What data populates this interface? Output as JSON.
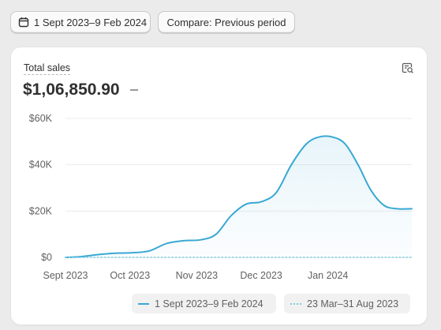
{
  "toolbar": {
    "date_range_label": "1 Sept 2023–9 Feb 2024",
    "compare_label": "Compare: Previous period"
  },
  "card": {
    "metric_label": "Total sales",
    "metric_value": "$1,06,850.90",
    "settings_icon": "chart-settings-icon"
  },
  "chart_data": {
    "type": "line",
    "x_tick_labels": [
      "Sept 2023",
      "Oct 2023",
      "Nov 2023",
      "Dec 2023",
      "Jan 2024"
    ],
    "y_tick_labels": [
      "$0",
      "$20K",
      "$40K",
      "$60K"
    ],
    "ylim": [
      0,
      60000
    ],
    "xlim": [
      "2023-09-01",
      "2024-02-09"
    ],
    "grid": true,
    "legend": "bottom-right",
    "series": [
      {
        "name": "1 Sept 2023–9 Feb 2024",
        "color": "#39a8d4",
        "style": "solid",
        "fill": true,
        "x": [
          "2023-09-01",
          "2023-09-08",
          "2023-09-16",
          "2023-09-24",
          "2023-10-02",
          "2023-10-10",
          "2023-10-18",
          "2023-10-26",
          "2023-11-03",
          "2023-11-10",
          "2023-11-17",
          "2023-11-24",
          "2023-12-01",
          "2023-12-08",
          "2023-12-15",
          "2023-12-22",
          "2023-12-28",
          "2024-01-03",
          "2024-01-09",
          "2024-01-15",
          "2024-01-21",
          "2024-01-27",
          "2024-02-02",
          "2024-02-09"
        ],
        "y": [
          0,
          300,
          1200,
          1800,
          2000,
          2800,
          6000,
          7200,
          7600,
          10000,
          18000,
          23000,
          24000,
          28000,
          40000,
          49000,
          52000,
          52000,
          49000,
          40000,
          29000,
          22500,
          21000,
          21000
        ]
      },
      {
        "name": "23 Mar–31 Aug 2023",
        "color": "#7fcde3",
        "style": "dotted",
        "fill": false,
        "x": [
          "2023-09-01",
          "2024-02-09"
        ],
        "y": [
          0,
          0
        ]
      }
    ]
  },
  "legend": {
    "current_label": "1 Sept 2023–9 Feb 2024",
    "previous_label": "23 Mar–31 Aug 2023"
  }
}
